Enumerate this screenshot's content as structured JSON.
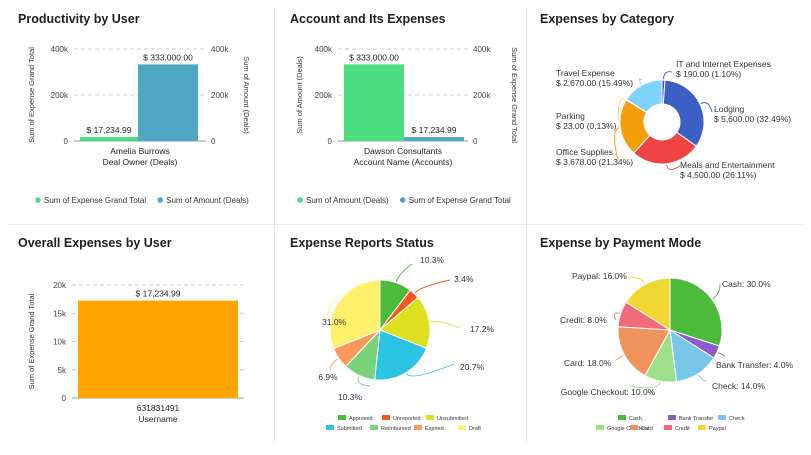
{
  "panels": {
    "productivity": {
      "title": "Productivity by User",
      "chart_data": {
        "type": "bar",
        "categories": [
          "Amelia Burrows"
        ],
        "xlabel": "Deal Owner (Deals)",
        "ylabel_left": "Sum of Expense Grand Total",
        "ylabel_right": "Sum of Amount (Deals)",
        "ylim": [
          0,
          400000
        ],
        "ticks": [
          "0",
          "200k",
          "400k"
        ],
        "series": [
          {
            "name": "Sum of Expense Grand Total",
            "color": "#4ade80",
            "values": [
              17234.99
            ],
            "label": "$ 17,234.99"
          },
          {
            "name": "Sum of Amount (Deals)",
            "color": "#4fa7c4",
            "values": [
              333000
            ],
            "label": "$ 333,000.00"
          }
        ]
      }
    },
    "account": {
      "title": "Account and Its Expenses",
      "chart_data": {
        "type": "bar",
        "categories": [
          "Dawson Consultants"
        ],
        "xlabel": "Account Name (Accounts)",
        "ylabel_left": "Sum of Amount (Deals)",
        "ylabel_right": "Sum of Expense Grand Total",
        "ylim": [
          0,
          400000
        ],
        "ticks": [
          "0",
          "200k",
          "400k"
        ],
        "series": [
          {
            "name": "Sum of Amount (Deals)",
            "color": "#4ade80",
            "values": [
              333000
            ],
            "label": "$ 333,000.00"
          },
          {
            "name": "Sum of Expense Grand Total",
            "color": "#4fa7c4",
            "values": [
              17234.99
            ],
            "label": "$ 17,234.99"
          }
        ]
      }
    },
    "category": {
      "title": "Expenses by Category",
      "chart_data": {
        "type": "pie",
        "donut": true,
        "slices": [
          {
            "name": "IT and Internet Expenses",
            "value": 190,
            "label": "$ 190.00 (1.10%)",
            "color": "#4f46e5"
          },
          {
            "name": "Lodging",
            "value": 5600,
            "label": "$ 5,600.00 (32.49%)",
            "color": "#3b5fc4"
          },
          {
            "name": "Meals and Entertainment",
            "value": 4500,
            "label": "$ 4,500.00 (26.11%)",
            "color": "#ef4444"
          },
          {
            "name": "Office Supplies",
            "value": 3678,
            "label": "$ 3,678.00 (21.34%)",
            "color": "#f59e0b"
          },
          {
            "name": "Parking",
            "value": 23,
            "label": "$ 23.00 (0.13%)",
            "color": "#fde047"
          },
          {
            "name": "Travel Expense",
            "value": 2670,
            "label": "$ 2,670.00 (15.49%)",
            "color": "#7dd3fc"
          }
        ]
      }
    },
    "overall": {
      "title": "Overall Expenses by User",
      "chart_data": {
        "type": "bar",
        "categories": [
          "631831491"
        ],
        "xlabel": "Username",
        "ylabel": "Sum of Expense Grand Total",
        "ylim": [
          0,
          20000
        ],
        "ticks": [
          "0",
          "5k",
          "10k",
          "15k",
          "20k"
        ],
        "series": [
          {
            "name": "Sum of Expense Grand Total",
            "color": "#ffa500",
            "values": [
              17234.99
            ],
            "label": "$ 17,234.99"
          }
        ]
      }
    },
    "status": {
      "title": "Expense Reports Status",
      "chart_data": {
        "type": "pie",
        "slices": [
          {
            "name": "Approved",
            "value": 10.3,
            "label": "10.3%",
            "color": "#4cbb3c"
          },
          {
            "name": "Unreported",
            "value": 3.4,
            "label": "3.4%",
            "color": "#f0581f"
          },
          {
            "name": "Unsubmitted",
            "value": 17.2,
            "label": "17.2%",
            "color": "#dde01f"
          },
          {
            "name": "Submitted",
            "value": 20.7,
            "label": "20.7%",
            "color": "#2bc4e3"
          },
          {
            "name": "Reimbursed",
            "value": 10.3,
            "label": "10.3%",
            "color": "#7ad27a"
          },
          {
            "name": "Expired",
            "value": 6.9,
            "label": "6.9%",
            "color": "#f79a5a"
          },
          {
            "name": "Draft",
            "value": 31.0,
            "label": "31.0%",
            "color": "#fdf06a"
          }
        ]
      }
    },
    "payment": {
      "title": "Expense by Payment Mode",
      "chart_data": {
        "type": "pie",
        "slices": [
          {
            "name": "Cash",
            "value": 30.0,
            "label": "Cash: 30.0%",
            "color": "#4cbb3c"
          },
          {
            "name": "Bank Transfer",
            "value": 4.0,
            "label": "Bank Transfer: 4.0%",
            "color": "#8b5cc9"
          },
          {
            "name": "Check",
            "value": 14.0,
            "label": "Check: 14.0%",
            "color": "#78c6e8"
          },
          {
            "name": "Google Checkout",
            "value": 10.0,
            "label": "Google Checkout: 10.0%",
            "color": "#9ee08a"
          },
          {
            "name": "Card",
            "value": 18.0,
            "label": "Card: 18.0%",
            "color": "#f0935a"
          },
          {
            "name": "Credit",
            "value": 8.0,
            "label": "Credit: 8.0%",
            "color": "#f26b7a"
          },
          {
            "name": "Paypal",
            "value": 16.0,
            "label": "Paypal: 16.0%",
            "color": "#f2d633"
          }
        ]
      }
    }
  }
}
